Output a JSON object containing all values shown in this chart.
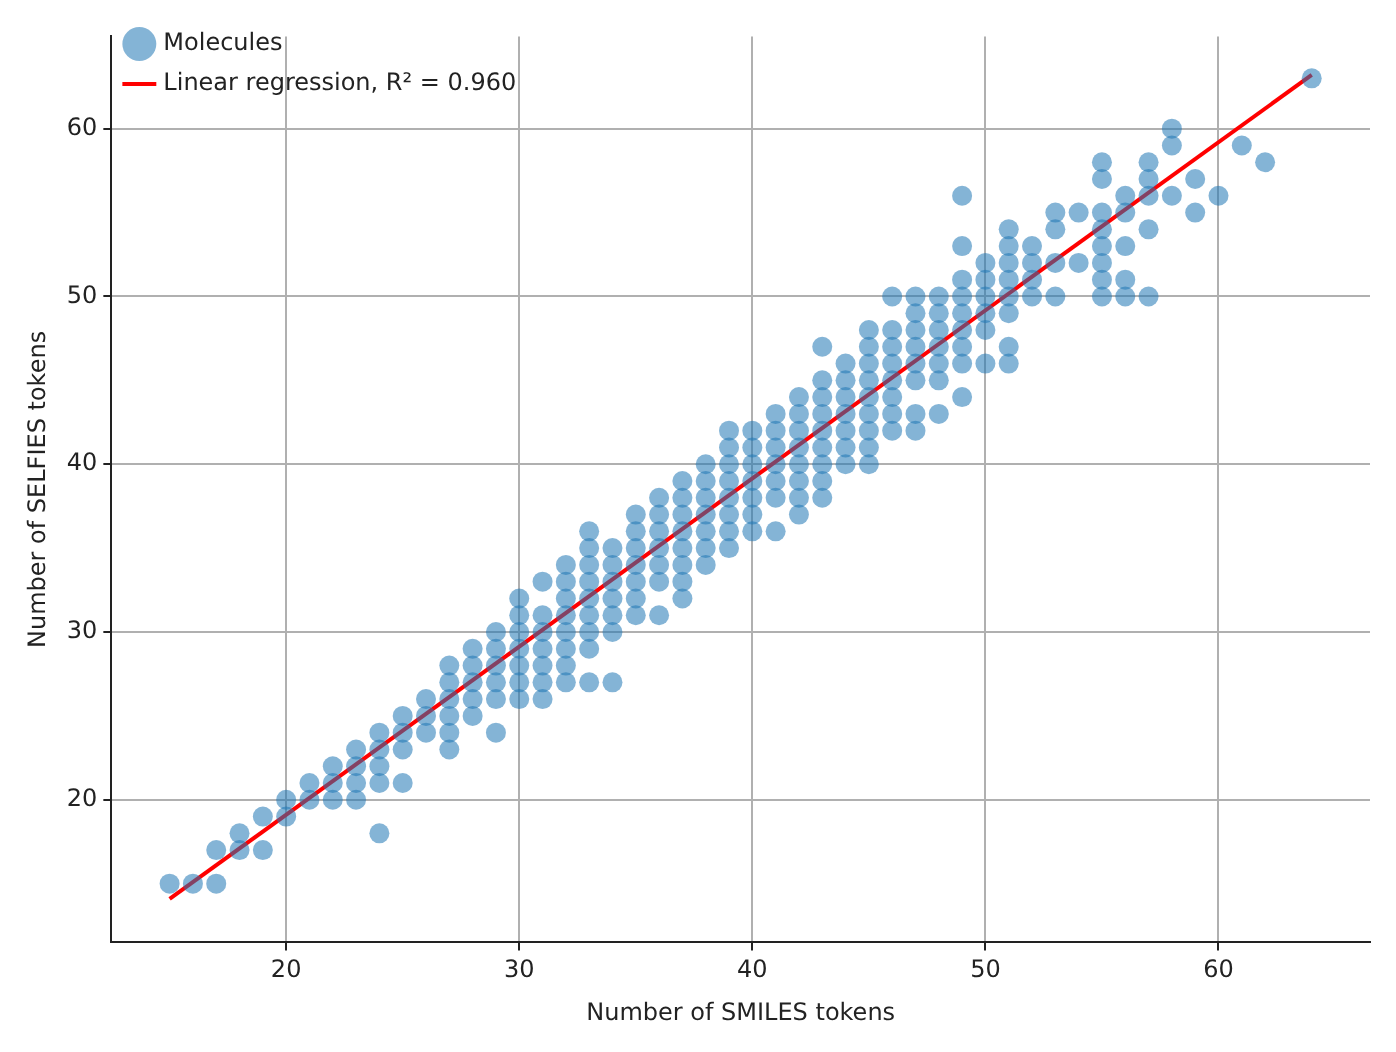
{
  "chart_data": {
    "type": "scatter",
    "xlabel": "Number of SMILES tokens",
    "ylabel": "Number of SELFIES tokens",
    "xlim": [
      12.5,
      66.5
    ],
    "ylim": [
      11.5,
      65.5
    ],
    "xticks": [
      20,
      30,
      40,
      50,
      60
    ],
    "yticks": [
      20,
      30,
      40,
      50,
      60
    ],
    "grid": true,
    "legend": "top left",
    "marker": "circle",
    "series": [
      {
        "name": "Molecules",
        "type": "scatter",
        "color": "#1f77b4",
        "x": [
          15,
          16,
          17,
          17,
          18,
          18,
          19,
          19,
          20,
          20,
          21,
          21,
          22,
          22,
          22,
          23,
          23,
          23,
          23,
          24,
          24,
          24,
          24,
          24,
          25,
          25,
          25,
          25,
          26,
          26,
          26,
          27,
          27,
          27,
          27,
          27,
          27,
          28,
          28,
          28,
          28,
          28,
          29,
          29,
          29,
          29,
          29,
          29,
          30,
          30,
          30,
          30,
          30,
          30,
          30,
          31,
          31,
          31,
          31,
          31,
          31,
          31,
          32,
          32,
          32,
          32,
          32,
          32,
          32,
          32,
          33,
          33,
          33,
          33,
          33,
          33,
          33,
          33,
          33,
          34,
          34,
          34,
          34,
          34,
          34,
          34,
          35,
          35,
          35,
          35,
          35,
          35,
          35,
          36,
          36,
          36,
          36,
          36,
          36,
          36,
          37,
          37,
          37,
          37,
          37,
          37,
          37,
          37,
          38,
          38,
          38,
          38,
          38,
          38,
          38,
          39,
          39,
          39,
          39,
          39,
          39,
          39,
          39,
          40,
          40,
          40,
          40,
          40,
          40,
          40,
          41,
          41,
          41,
          41,
          41,
          41,
          41,
          42,
          42,
          42,
          42,
          42,
          42,
          42,
          42,
          43,
          43,
          43,
          43,
          43,
          43,
          43,
          43,
          43,
          44,
          44,
          44,
          44,
          44,
          44,
          44,
          45,
          45,
          45,
          45,
          45,
          45,
          45,
          45,
          45,
          46,
          46,
          46,
          46,
          46,
          46,
          46,
          46,
          47,
          47,
          47,
          47,
          47,
          47,
          47,
          47,
          48,
          48,
          48,
          48,
          48,
          48,
          48,
          49,
          49,
          49,
          49,
          49,
          49,
          49,
          49,
          49,
          50,
          50,
          50,
          50,
          50,
          50,
          51,
          51,
          51,
          51,
          51,
          51,
          51,
          51,
          52,
          52,
          52,
          52,
          53,
          53,
          53,
          53,
          54,
          54,
          55,
          55,
          55,
          55,
          55,
          55,
          55,
          55,
          56,
          56,
          56,
          56,
          56,
          57,
          57,
          57,
          57,
          57,
          58,
          58,
          58,
          59,
          59,
          60,
          61,
          62,
          64
        ],
        "values": [
          15,
          15,
          15,
          17,
          17,
          18,
          17,
          19,
          19,
          20,
          20,
          21,
          20,
          21,
          22,
          20,
          21,
          22,
          23,
          18,
          21,
          22,
          23,
          24,
          21,
          23,
          24,
          25,
          24,
          25,
          26,
          23,
          24,
          25,
          26,
          27,
          28,
          25,
          26,
          27,
          28,
          29,
          24,
          26,
          27,
          28,
          29,
          30,
          26,
          27,
          28,
          29,
          30,
          31,
          32,
          26,
          27,
          28,
          29,
          30,
          31,
          33,
          27,
          28,
          29,
          30,
          31,
          32,
          33,
          34,
          27,
          29,
          30,
          31,
          32,
          33,
          34,
          35,
          36,
          27,
          30,
          31,
          32,
          33,
          34,
          35,
          31,
          32,
          33,
          34,
          35,
          36,
          37,
          31,
          33,
          34,
          35,
          36,
          37,
          38,
          32,
          33,
          34,
          35,
          36,
          37,
          38,
          39,
          34,
          35,
          36,
          37,
          38,
          39,
          40,
          35,
          36,
          37,
          38,
          39,
          40,
          41,
          42,
          36,
          37,
          38,
          39,
          40,
          41,
          42,
          36,
          38,
          39,
          40,
          41,
          42,
          43,
          37,
          38,
          39,
          40,
          41,
          42,
          43,
          44,
          38,
          39,
          40,
          41,
          42,
          43,
          44,
          45,
          47,
          40,
          41,
          42,
          43,
          44,
          45,
          46,
          40,
          41,
          42,
          43,
          44,
          45,
          46,
          47,
          48,
          42,
          43,
          44,
          45,
          46,
          47,
          48,
          50,
          42,
          43,
          45,
          46,
          47,
          48,
          49,
          50,
          43,
          45,
          46,
          47,
          48,
          49,
          50,
          44,
          46,
          47,
          48,
          49,
          50,
          51,
          53,
          56,
          46,
          48,
          49,
          50,
          51,
          52,
          46,
          47,
          49,
          50,
          51,
          52,
          53,
          54,
          50,
          51,
          52,
          53,
          50,
          52,
          54,
          55,
          52,
          55,
          50,
          51,
          52,
          53,
          54,
          55,
          57,
          58,
          50,
          51,
          53,
          55,
          56,
          50,
          54,
          56,
          57,
          58,
          56,
          59,
          60,
          55,
          57,
          56,
          59,
          58,
          63
        ]
      },
      {
        "name": "Linear regression, R² = 0.960",
        "type": "line",
        "color": "#ff0000",
        "marker": "none",
        "line_style": "solid",
        "x": [
          15,
          64
        ],
        "values": [
          14.1,
          63.2
        ]
      }
    ]
  }
}
